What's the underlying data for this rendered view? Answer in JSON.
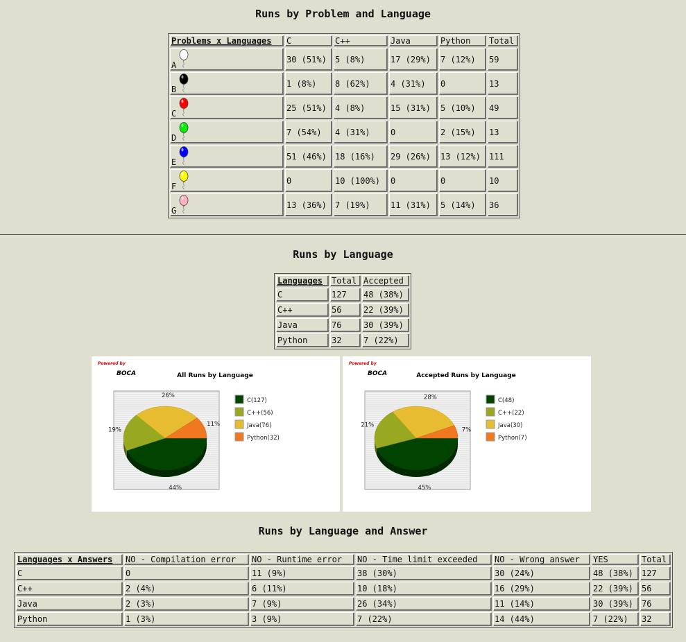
{
  "section1": {
    "title": "Runs by Problem and Language",
    "corner": "Problems x Languages",
    "columns": [
      "C",
      "C++",
      "Java",
      "Python",
      "Total"
    ],
    "rows": [
      {
        "problem": "A",
        "balloon_color": "#ffffff",
        "cells": [
          "30 (51%)",
          "5 (8%)",
          "17 (29%)",
          "7 (12%)",
          "59"
        ]
      },
      {
        "problem": "B",
        "balloon_color": "#000000",
        "cells": [
          "1 (8%)",
          "8 (62%)",
          "4 (31%)",
          "0",
          "13"
        ]
      },
      {
        "problem": "C",
        "balloon_color": "#ff0000",
        "cells": [
          "25 (51%)",
          "4 (8%)",
          "15 (31%)",
          "5 (10%)",
          "49"
        ]
      },
      {
        "problem": "D",
        "balloon_color": "#00ee00",
        "cells": [
          "7 (54%)",
          "4 (31%)",
          "0",
          "2 (15%)",
          "13"
        ]
      },
      {
        "problem": "E",
        "balloon_color": "#0000ff",
        "cells": [
          "51 (46%)",
          "18 (16%)",
          "29 (26%)",
          "13 (12%)",
          "111"
        ]
      },
      {
        "problem": "F",
        "balloon_color": "#ffff00",
        "cells": [
          "0",
          "10 (100%)",
          "0",
          "0",
          "10"
        ]
      },
      {
        "problem": "G",
        "balloon_color": "#ffb0c0",
        "cells": [
          "13 (36%)",
          "7 (19%)",
          "11 (31%)",
          "5 (14%)",
          "36"
        ]
      }
    ]
  },
  "section2": {
    "title": "Runs by Language",
    "columns": [
      "Languages",
      "Total",
      "Accepted"
    ],
    "rows": [
      [
        "C",
        "127",
        "48 (38%)"
      ],
      [
        "C++",
        "56",
        "22 (39%)"
      ],
      [
        "Java",
        "76",
        "30 (39%)"
      ],
      [
        "Python",
        "32",
        "7 (22%)"
      ]
    ]
  },
  "charts": {
    "powered_by": "Powered by",
    "brand": "BOCA",
    "series_colors": [
      "#004400",
      "#98a820",
      "#e8bc30",
      "#f07820"
    ],
    "all": {
      "title": "All Runs by Language",
      "legend": [
        "C(127)",
        "C++(56)",
        "Java(76)",
        "Python(32)"
      ],
      "labels": [
        "44%",
        "19%",
        "26%",
        "11%"
      ]
    },
    "accepted": {
      "title": "Accepted Runs by Language",
      "legend": [
        "C(48)",
        "C++(22)",
        "Java(30)",
        "Python(7)"
      ],
      "labels": [
        "45%",
        "21%",
        "28%",
        "7%"
      ]
    }
  },
  "chart_data": [
    {
      "type": "pie",
      "title": "All Runs by Language",
      "categories": [
        "C",
        "C++",
        "Java",
        "Python"
      ],
      "values": [
        127,
        56,
        76,
        32
      ]
    },
    {
      "type": "pie",
      "title": "Accepted Runs by Language",
      "categories": [
        "C",
        "C++",
        "Java",
        "Python"
      ],
      "values": [
        48,
        22,
        30,
        7
      ]
    }
  ],
  "section3": {
    "title": "Runs by Language and Answer",
    "corner": "Languages x Answers",
    "columns": [
      "NO - Compilation error",
      "NO - Runtime error",
      "NO - Time limit exceeded",
      "NO - Wrong answer",
      "YES",
      "Total"
    ],
    "rows": [
      {
        "lang": "C",
        "cells": [
          "0",
          "11 (9%)",
          "38 (30%)",
          "30 (24%)",
          "48 (38%)",
          "127"
        ]
      },
      {
        "lang": "C++",
        "cells": [
          "2 (4%)",
          "6 (11%)",
          "10 (18%)",
          "16 (29%)",
          "22 (39%)",
          "56"
        ]
      },
      {
        "lang": "Java",
        "cells": [
          "2 (3%)",
          "7 (9%)",
          "26 (34%)",
          "11 (14%)",
          "30 (39%)",
          "76"
        ]
      },
      {
        "lang": "Python",
        "cells": [
          "1 (3%)",
          "3 (9%)",
          "7 (22%)",
          "14 (44%)",
          "7 (22%)",
          "32"
        ]
      }
    ]
  }
}
